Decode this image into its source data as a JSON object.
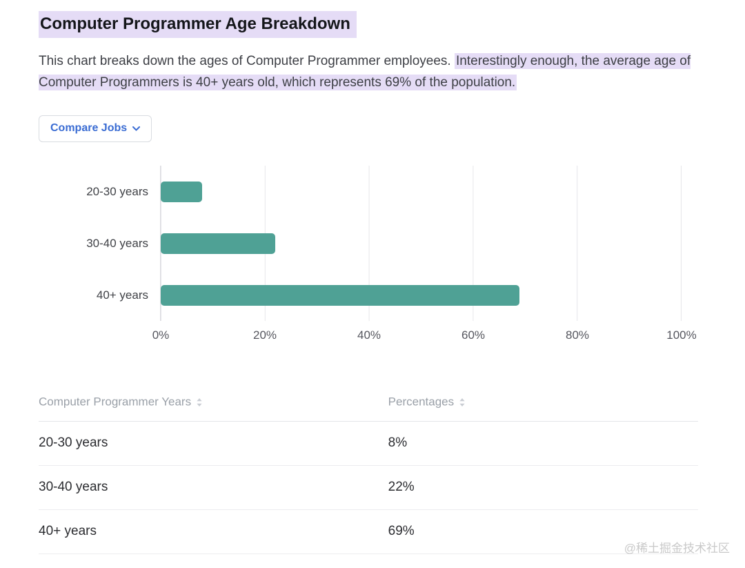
{
  "header": {
    "title": "Computer Programmer Age Breakdown",
    "description_plain": "This chart breaks down the ages of Computer Programmer employees. ",
    "description_highlight": "Interestingly enough, the average age of Computer Programmers is 40+ years old, which represents 69% of the population."
  },
  "controls": {
    "compare_button_label": "Compare Jobs"
  },
  "icons": {
    "chevron": "chevron-down-icon",
    "sort": "sort-icon"
  },
  "colors": {
    "bar": "#4fa195",
    "highlight": "#e5dcf6",
    "button_text": "#3a6cd3",
    "gridline": "#e6e6ea",
    "table_header_text": "#9aa0a8"
  },
  "chart_data": {
    "type": "bar",
    "orientation": "horizontal",
    "title": "Computer Programmer Age Breakdown",
    "categories": [
      "20-30 years",
      "30-40 years",
      "40+ years"
    ],
    "values": [
      8,
      22,
      69
    ],
    "unit": "%",
    "x_ticks": [
      "0%",
      "20%",
      "40%",
      "60%",
      "80%",
      "100%"
    ],
    "xlim": [
      0,
      100
    ],
    "grid": "vertical"
  },
  "table": {
    "headers": [
      "Computer Programmer Years",
      "Percentages"
    ],
    "rows": [
      [
        "20-30 years",
        "8%"
      ],
      [
        "30-40 years",
        "22%"
      ],
      [
        "40+ years",
        "69%"
      ]
    ]
  },
  "watermark": "@稀土掘金技术社区"
}
